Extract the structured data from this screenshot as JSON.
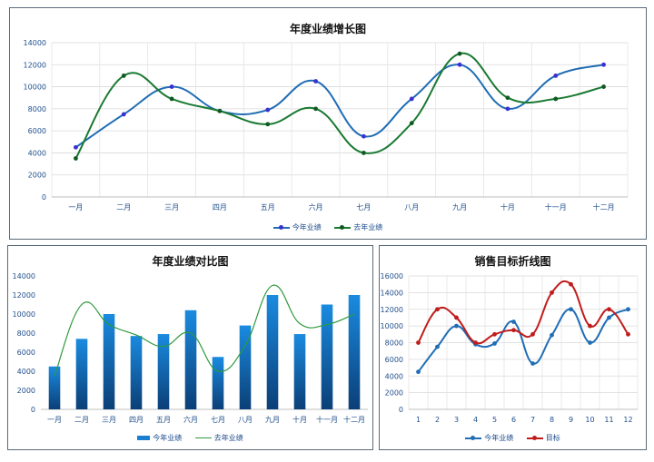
{
  "chart_data": [
    {
      "type": "line",
      "title": "年度业绩增长图",
      "categories": [
        "一月",
        "二月",
        "三月",
        "四月",
        "五月",
        "六月",
        "七月",
        "八月",
        "九月",
        "十月",
        "十一月",
        "十二月"
      ],
      "ylim": [
        0,
        14000
      ],
      "yticks": [
        0,
        2000,
        4000,
        6000,
        8000,
        10000,
        12000,
        14000
      ],
      "grid": true,
      "legend": "bottom",
      "series": [
        {
          "name": "今年业绩",
          "color": "#1f6db5",
          "marker_color": "#3a2fd0",
          "values": [
            4500,
            7500,
            10000,
            7800,
            7900,
            10500,
            5500,
            8900,
            12000,
            8000,
            11000,
            12000
          ]
        },
        {
          "name": "去年业绩",
          "color": "#1a7a32",
          "marker_color": "#0f5a22",
          "values": [
            3500,
            11000,
            8900,
            7800,
            6600,
            8000,
            4000,
            6700,
            13000,
            9000,
            8900,
            10000
          ]
        }
      ]
    },
    {
      "type": "bar",
      "title": "年度业绩对比图",
      "categories": [
        "一月",
        "二月",
        "三月",
        "四月",
        "五月",
        "六月",
        "七月",
        "八月",
        "九月",
        "十月",
        "十一月",
        "十二月"
      ],
      "ylim": [
        0,
        14000
      ],
      "yticks": [
        0,
        2000,
        4000,
        6000,
        8000,
        10000,
        12000,
        14000
      ],
      "grid": false,
      "legend": "bottom",
      "series": [
        {
          "name": "今年业绩",
          "kind": "bar",
          "color": "#1a7fd0",
          "values": [
            4500,
            7400,
            10000,
            7700,
            7900,
            10400,
            5500,
            8800,
            12000,
            7900,
            11000,
            12000
          ]
        },
        {
          "name": "去年业绩",
          "kind": "line",
          "color": "#2e9a3e",
          "values": [
            3500,
            11000,
            8900,
            7800,
            6600,
            8000,
            4000,
            6700,
            13000,
            9000,
            8900,
            10000
          ]
        }
      ]
    },
    {
      "type": "line",
      "title": "销售目标折线图",
      "categories": [
        "1",
        "2",
        "3",
        "4",
        "5",
        "6",
        "7",
        "8",
        "9",
        "10",
        "11",
        "12"
      ],
      "ylim": [
        0,
        16000
      ],
      "yticks": [
        0,
        2000,
        4000,
        6000,
        8000,
        10000,
        12000,
        14000,
        16000
      ],
      "grid": true,
      "legend": "bottom",
      "series": [
        {
          "name": "今年业绩",
          "color": "#1f6db5",
          "marker_color": "#1f6db5",
          "values": [
            4500,
            7500,
            10000,
            7800,
            7900,
            10500,
            5500,
            8900,
            12000,
            8000,
            11000,
            12000
          ]
        },
        {
          "name": "目标",
          "color": "#c01c1c",
          "marker_color": "#c01c1c",
          "values": [
            8000,
            12000,
            11000,
            8000,
            9000,
            9500,
            9000,
            14000,
            15000,
            10000,
            12000,
            9000
          ]
        }
      ]
    }
  ]
}
